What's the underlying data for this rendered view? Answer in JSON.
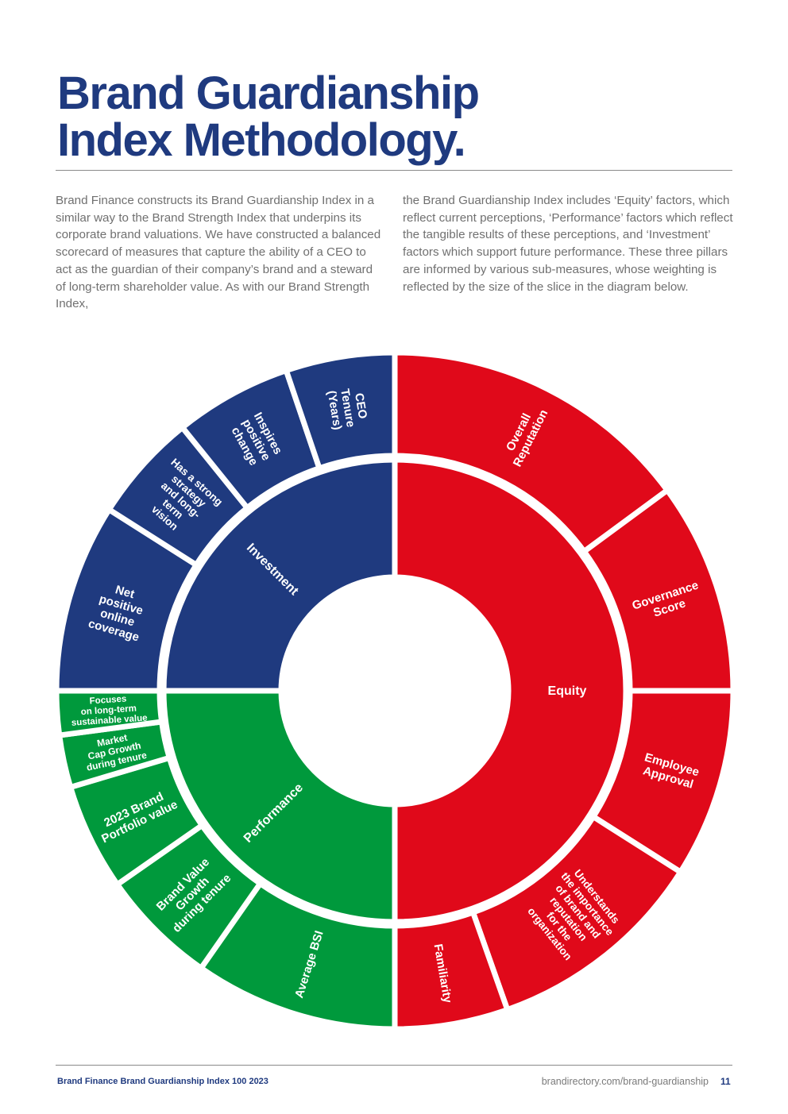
{
  "page": {
    "title_line1": "Brand Guardianship",
    "title_line2": "Index Methodology.",
    "paragraph_left": "Brand Finance constructs its Brand Guardianship Index in a similar way to the Brand Strength Index that underpins its corporate brand valuations. We have constructed a balanced scorecard of measures that capture the ability of a CEO to act as the guardian of their company’s brand and a steward of long-term shareholder value. As with our Brand Strength Index,",
    "paragraph_right": "the Brand Guardianship Index includes ‘Equity’ factors, which reflect current perceptions, ‘Performance’ factors which reflect the tangible results of these perceptions, and ‘Investment’ factors which support future performance. These three pillars are informed by various sub-measures, whose weighting is reflected by the size of the slice in the diagram below.",
    "footer_left": "Brand Finance Brand Guardianship Index 100 2023",
    "footer_url": "brandirectory.com/brand-guardianship",
    "page_number": "11"
  },
  "colors": {
    "equity": "#e0091a",
    "performance": "#00993c",
    "investment": "#1f3a7f",
    "title": "#1f3a7f"
  },
  "diagram": {
    "pillars": [
      {
        "name": "Equity",
        "share_percent": 50,
        "color": "#e0091a"
      },
      {
        "name": "Performance",
        "share_percent": 25,
        "color": "#00993c"
      },
      {
        "name": "Investment",
        "share_percent": 25,
        "color": "#1f3a7f"
      }
    ],
    "segments": [
      {
        "pillar": "Equity",
        "label_lines": [
          "Overall",
          "Reputation"
        ],
        "share_percent": 14.9
      },
      {
        "pillar": "Equity",
        "label_lines": [
          "Governance",
          "Score"
        ],
        "share_percent": 10.1
      },
      {
        "pillar": "Equity",
        "label_lines": [
          "Employee",
          "Approval"
        ],
        "share_percent": 9.0
      },
      {
        "pillar": "Equity",
        "label_lines": [
          "Understands",
          "the importance",
          "of brand and",
          "reputation",
          "for the",
          "organization"
        ],
        "share_percent": 10.6
      },
      {
        "pillar": "Equity",
        "label_lines": [
          "Familiarity"
        ],
        "share_percent": 5.4
      },
      {
        "pillar": "Performance",
        "label_lines": [
          "Average BSI"
        ],
        "share_percent": 9.7
      },
      {
        "pillar": "Performance",
        "label_lines": [
          "Brand Value",
          "Growth",
          "during tenure"
        ],
        "share_percent": 5.6
      },
      {
        "pillar": "Performance",
        "label_lines": [
          "2023 Brand",
          "Portfolio value"
        ],
        "share_percent": 5.1
      },
      {
        "pillar": "Performance",
        "label_lines": [
          "Market",
          "Cap Growth",
          "during tenure"
        ],
        "share_percent": 2.5
      },
      {
        "pillar": "Performance",
        "label_lines": [
          "Focuses",
          "on long-term",
          "sustainable value"
        ],
        "share_percent": 2.1
      },
      {
        "pillar": "Investment",
        "label_lines": [
          "Net",
          "positive",
          "online",
          "coverage"
        ],
        "share_percent": 9.0
      },
      {
        "pillar": "Investment",
        "label_lines": [
          "Has a strong",
          "strategy",
          "and long-",
          "term",
          "vision"
        ],
        "share_percent": 5.2
      },
      {
        "pillar": "Investment",
        "label_lines": [
          "Inspires",
          "positive",
          "change"
        ],
        "share_percent": 5.6
      },
      {
        "pillar": "Investment",
        "label_lines": [
          "CEO",
          "Tenure",
          "(Years)"
        ],
        "share_percent": 5.2
      }
    ]
  }
}
